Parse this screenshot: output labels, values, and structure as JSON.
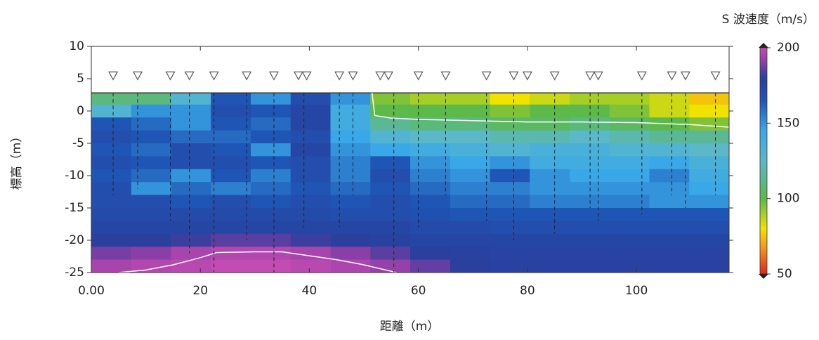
{
  "chart_data": {
    "type": "heatmap",
    "colorbar_title": "S 波速度（m/s）",
    "xlabel": "距離（m）",
    "ylabel": "標高（m）",
    "xlim": [
      0,
      117
    ],
    "ylim": [
      -25,
      10
    ],
    "xticks": [
      {
        "value": 0,
        "label": "0.00"
      },
      20,
      40,
      60,
      80,
      100
    ],
    "yticks": [
      -25,
      -20,
      -15,
      -10,
      -5,
      0,
      5,
      10
    ],
    "clim": [
      50,
      200
    ],
    "cticks": [
      50,
      100,
      150,
      200
    ],
    "colorscale": [
      [
        50,
        "#e0261c"
      ],
      [
        68,
        "#f59a1a"
      ],
      [
        80,
        "#f1e200"
      ],
      [
        100,
        "#5cb94a"
      ],
      [
        125,
        "#5ab8c8"
      ],
      [
        145,
        "#3aa8e8"
      ],
      [
        165,
        "#1f55b5"
      ],
      [
        180,
        "#2a3f9e"
      ],
      [
        190,
        "#8a3fa6"
      ],
      [
        200,
        "#c34bb4"
      ]
    ],
    "surface_elevation": 2.8,
    "x_edges": [
      0,
      7.3125,
      14.625,
      21.9375,
      29.25,
      36.5625,
      43.875,
      51.1875,
      58.5,
      65.8125,
      73.125,
      80.4375,
      87.75,
      95.0625,
      102.375,
      109.6875,
      117
    ],
    "y_edges": [
      2.8,
      1,
      -1,
      -3,
      -5,
      -7,
      -9,
      -11,
      -13,
      -15,
      -17,
      -19,
      -21,
      -23,
      -25
    ],
    "values": [
      [
        110,
        110,
        130,
        165,
        150,
        170,
        150,
        95,
        90,
        90,
        80,
        85,
        90,
        90,
        85,
        75
      ],
      [
        130,
        150,
        150,
        170,
        165,
        175,
        140,
        100,
        100,
        100,
        95,
        100,
        100,
        95,
        85,
        80
      ],
      [
        165,
        160,
        150,
        165,
        160,
        175,
        140,
        115,
        110,
        110,
        105,
        105,
        110,
        105,
        100,
        95
      ],
      [
        170,
        165,
        160,
        160,
        165,
        170,
        145,
        130,
        125,
        125,
        120,
        120,
        125,
        120,
        115,
        115
      ],
      [
        165,
        160,
        170,
        165,
        150,
        175,
        150,
        145,
        140,
        135,
        130,
        135,
        135,
        130,
        130,
        125
      ],
      [
        170,
        165,
        170,
        170,
        165,
        170,
        155,
        165,
        150,
        145,
        150,
        140,
        140,
        140,
        145,
        135
      ],
      [
        165,
        160,
        150,
        165,
        155,
        170,
        155,
        170,
        155,
        150,
        165,
        150,
        145,
        145,
        155,
        140
      ],
      [
        170,
        150,
        160,
        155,
        160,
        165,
        160,
        165,
        160,
        155,
        155,
        150,
        150,
        150,
        150,
        145
      ],
      [
        170,
        170,
        165,
        170,
        165,
        170,
        165,
        170,
        165,
        160,
        160,
        155,
        155,
        155,
        150,
        150
      ],
      [
        172,
        172,
        172,
        172,
        172,
        172,
        170,
        170,
        168,
        165,
        165,
        165,
        165,
        165,
        165,
        165
      ],
      [
        175,
        175,
        175,
        175,
        175,
        175,
        175,
        175,
        172,
        172,
        170,
        170,
        170,
        170,
        170,
        170
      ],
      [
        180,
        180,
        182,
        185,
        185,
        182,
        180,
        178,
        175,
        175,
        175,
        175,
        175,
        175,
        175,
        175
      ],
      [
        188,
        190,
        195,
        197,
        197,
        195,
        190,
        185,
        180,
        178,
        177,
        177,
        177,
        177,
        177,
        177
      ],
      [
        195,
        197,
        198,
        200,
        200,
        198,
        196,
        192,
        186,
        180,
        178,
        178,
        178,
        178,
        178,
        178
      ]
    ],
    "contours": [
      {
        "x": [
          51.5,
          52,
          55,
          60,
          70,
          80,
          90,
          100,
          110,
          117
        ],
        "y": [
          2.8,
          -0.7,
          -1.1,
          -1.3,
          -1.5,
          -1.7,
          -1.7,
          -1.8,
          -2.1,
          -2.5
        ]
      },
      {
        "x": [
          5,
          10,
          15,
          20,
          23,
          30,
          35,
          40,
          45,
          50,
          56
        ],
        "y": [
          -25,
          -24.6,
          -23.8,
          -22.7,
          -21.9,
          -21.8,
          -21.8,
          -22.4,
          -23,
          -23.8,
          -25
        ]
      }
    ],
    "receivers_x": [
      4,
      8.5,
      14.5,
      18,
      22.5,
      28.5,
      33.5,
      38,
      39.5,
      45.5,
      48,
      53,
      54.5,
      60,
      65,
      72.5,
      77.5,
      80,
      85,
      91.5,
      93,
      101,
      106.5,
      109,
      114.5
    ],
    "receivers_y": 5.5,
    "profiles": {
      "x": [
        4,
        8.5,
        14.5,
        18,
        22.5,
        28.5,
        33.5,
        39,
        45.5,
        48,
        55.5,
        60,
        65,
        72.5,
        77.5,
        85,
        91.5,
        93,
        101,
        106.5,
        109,
        114.5
      ],
      "bottom": [
        -13,
        -12,
        -17,
        -22,
        -25,
        -20,
        -25,
        -18,
        -18,
        -13,
        -25,
        -18,
        -13,
        -17,
        -20,
        -19,
        -15,
        -17,
        -16,
        -13,
        -15,
        -13
      ]
    }
  }
}
